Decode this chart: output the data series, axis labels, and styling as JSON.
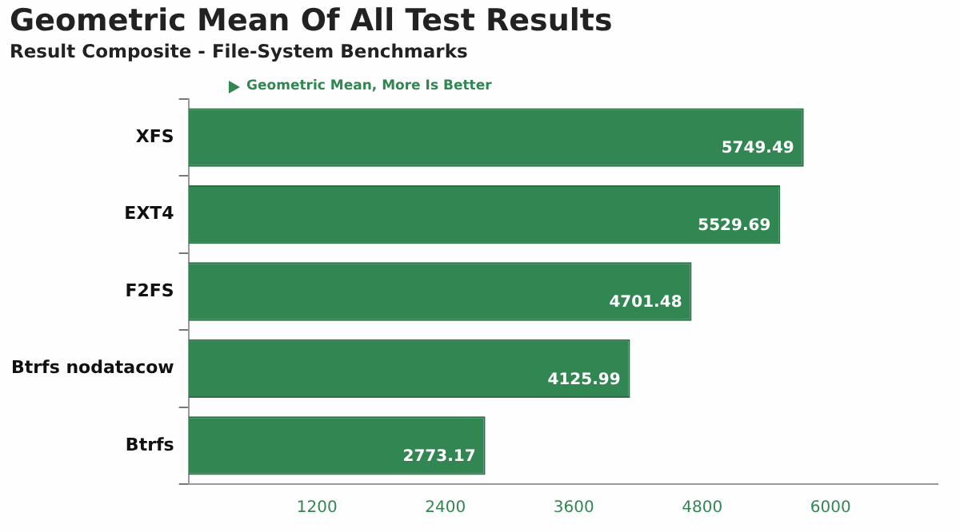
{
  "chart_data": {
    "type": "bar",
    "orientation": "horizontal",
    "title": "Geometric Mean Of All Test Results",
    "subtitle": "Result Composite - File-System Benchmarks",
    "annotations": [
      "Geometric Mean, More Is Better"
    ],
    "categories": [
      "XFS",
      "EXT4",
      "F2FS",
      "Btrfs nodatacow",
      "Btrfs"
    ],
    "values": [
      5749.49,
      5529.69,
      4701.48,
      4125.99,
      2773.17
    ],
    "color": "#318652",
    "xlim": [
      0,
      7000
    ],
    "xticks": [
      1200,
      2400,
      3600,
      4800,
      6000
    ],
    "data_labels": true,
    "grid": false,
    "legend": false
  }
}
